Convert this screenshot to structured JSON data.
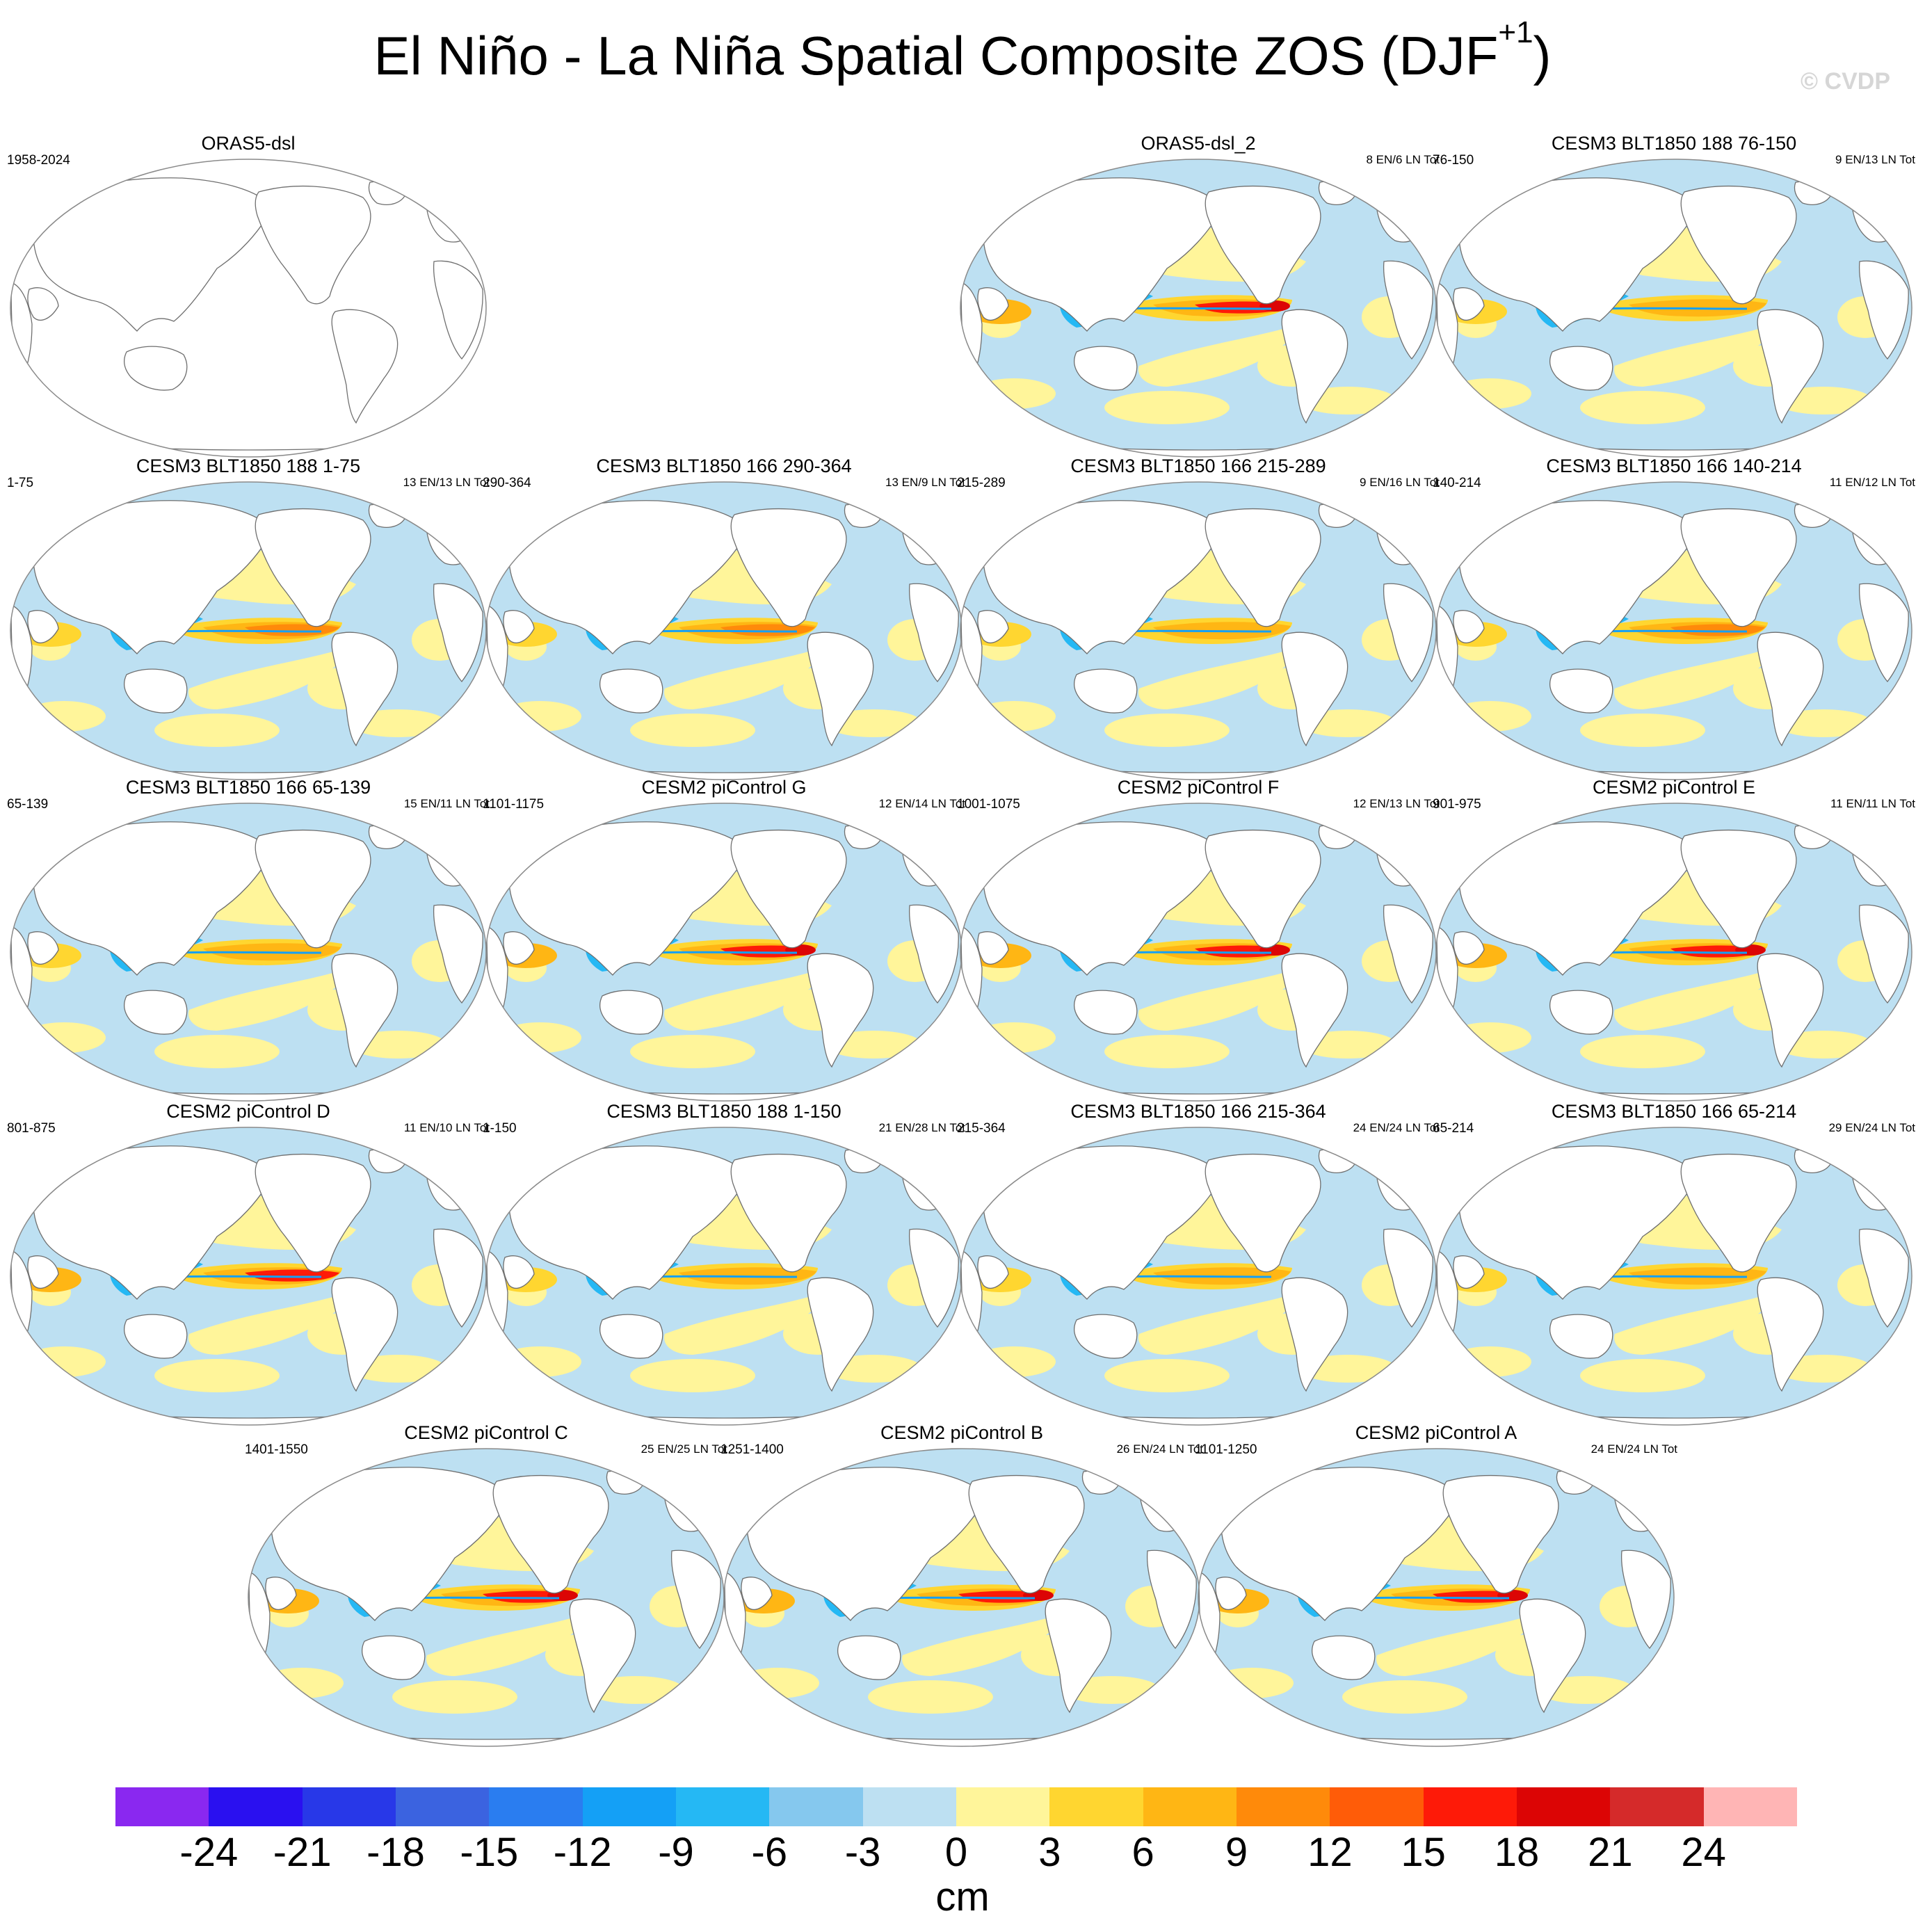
{
  "title": "El Niño - La Niña Spatial Composite ZOS (DJF",
  "title_sup": "+1",
  "title_end": ")",
  "watermark": "© CVDP",
  "panels": [
    {
      "title": "ORAS5-dsl",
      "left": "1958-2024",
      "right": "",
      "empty": true,
      "strength": 0
    },
    {
      "title": "ORAS5-dsl_2",
      "left": "",
      "right": "8 EN/6 LN Tot",
      "empty": false,
      "strength": 0.9
    },
    {
      "title": "CESM3 BLT1850 188 76-150",
      "left": "76-150",
      "right": "9 EN/13 LN Tot",
      "empty": false,
      "strength": 0.45
    },
    {
      "title": "CESM3 BLT1850 188 1-75",
      "left": "1-75",
      "right": "13 EN/13 LN Tot",
      "empty": false,
      "strength": 0.55
    },
    {
      "title": "CESM3 BLT1850 166 290-364",
      "left": "290-364",
      "right": "13 EN/9 LN Tot",
      "empty": false,
      "strength": 0.6
    },
    {
      "title": "CESM3 BLT1850 166 215-289",
      "left": "215-289",
      "right": "9 EN/16 LN Tot",
      "empty": false,
      "strength": 0.5
    },
    {
      "title": "CESM3 BLT1850 166 140-214",
      "left": "140-214",
      "right": "11 EN/12 LN Tot",
      "empty": false,
      "strength": 0.55
    },
    {
      "title": "CESM3 BLT1850 166 65-139",
      "left": "65-139",
      "right": "15 EN/11 LN Tot",
      "empty": false,
      "strength": 0.45
    },
    {
      "title": "CESM2 piControl G",
      "left": "1101-1175",
      "right": "12 EN/14 LN Tot",
      "empty": false,
      "strength": 0.9
    },
    {
      "title": "CESM2 piControl F",
      "left": "1001-1075",
      "right": "12 EN/13 LN Tot",
      "empty": false,
      "strength": 0.9
    },
    {
      "title": "CESM2 piControl E",
      "left": "901-975",
      "right": "11 EN/11 LN Tot",
      "empty": false,
      "strength": 0.9
    },
    {
      "title": "CESM2 piControl D",
      "left": "801-875",
      "right": "11 EN/10 LN Tot",
      "empty": false,
      "strength": 0.85
    },
    {
      "title": "CESM3 BLT1850 188 1-150",
      "left": "1-150",
      "right": "21 EN/28 LN Tot",
      "empty": false,
      "strength": 0.5
    },
    {
      "title": "CESM3 BLT1850 166 215-364",
      "left": "215-364",
      "right": "24 EN/24 LN Tot",
      "empty": false,
      "strength": 0.5
    },
    {
      "title": "CESM3 BLT1850 166 65-214",
      "left": "65-214",
      "right": "29 EN/24 LN Tot",
      "empty": false,
      "strength": 0.5
    },
    {
      "title": "CESM2 piControl C",
      "left": "1401-1550",
      "right": "25 EN/25 LN Tot",
      "empty": false,
      "strength": 0.95
    },
    {
      "title": "CESM2 piControl B",
      "left": "1251-1400",
      "right": "26 EN/24 LN Tot",
      "empty": false,
      "strength": 0.95
    },
    {
      "title": "CESM2 piControl A",
      "left": "1101-1250",
      "right": "24 EN/24 LN Tot",
      "empty": false,
      "strength": 1.0
    }
  ],
  "colorbar": {
    "colors": [
      "#8a28f0",
      "#2a10f0",
      "#2838e8",
      "#3b63e0",
      "#2a7df0",
      "#14a0f6",
      "#25b8f4",
      "#85c8ee",
      "#bde0f2",
      "#fff59a",
      "#ffd630",
      "#ffb614",
      "#ff8a0a",
      "#ff5c08",
      "#fe1a08",
      "#dc0505",
      "#d52a2a",
      "#ffb5b5"
    ],
    "ticks": [
      "-24",
      "-21",
      "-18",
      "-15",
      "-12",
      "-9",
      "-6",
      "-3",
      "0",
      "3",
      "6",
      "9",
      "12",
      "15",
      "18",
      "21",
      "24"
    ],
    "units": "cm"
  }
}
